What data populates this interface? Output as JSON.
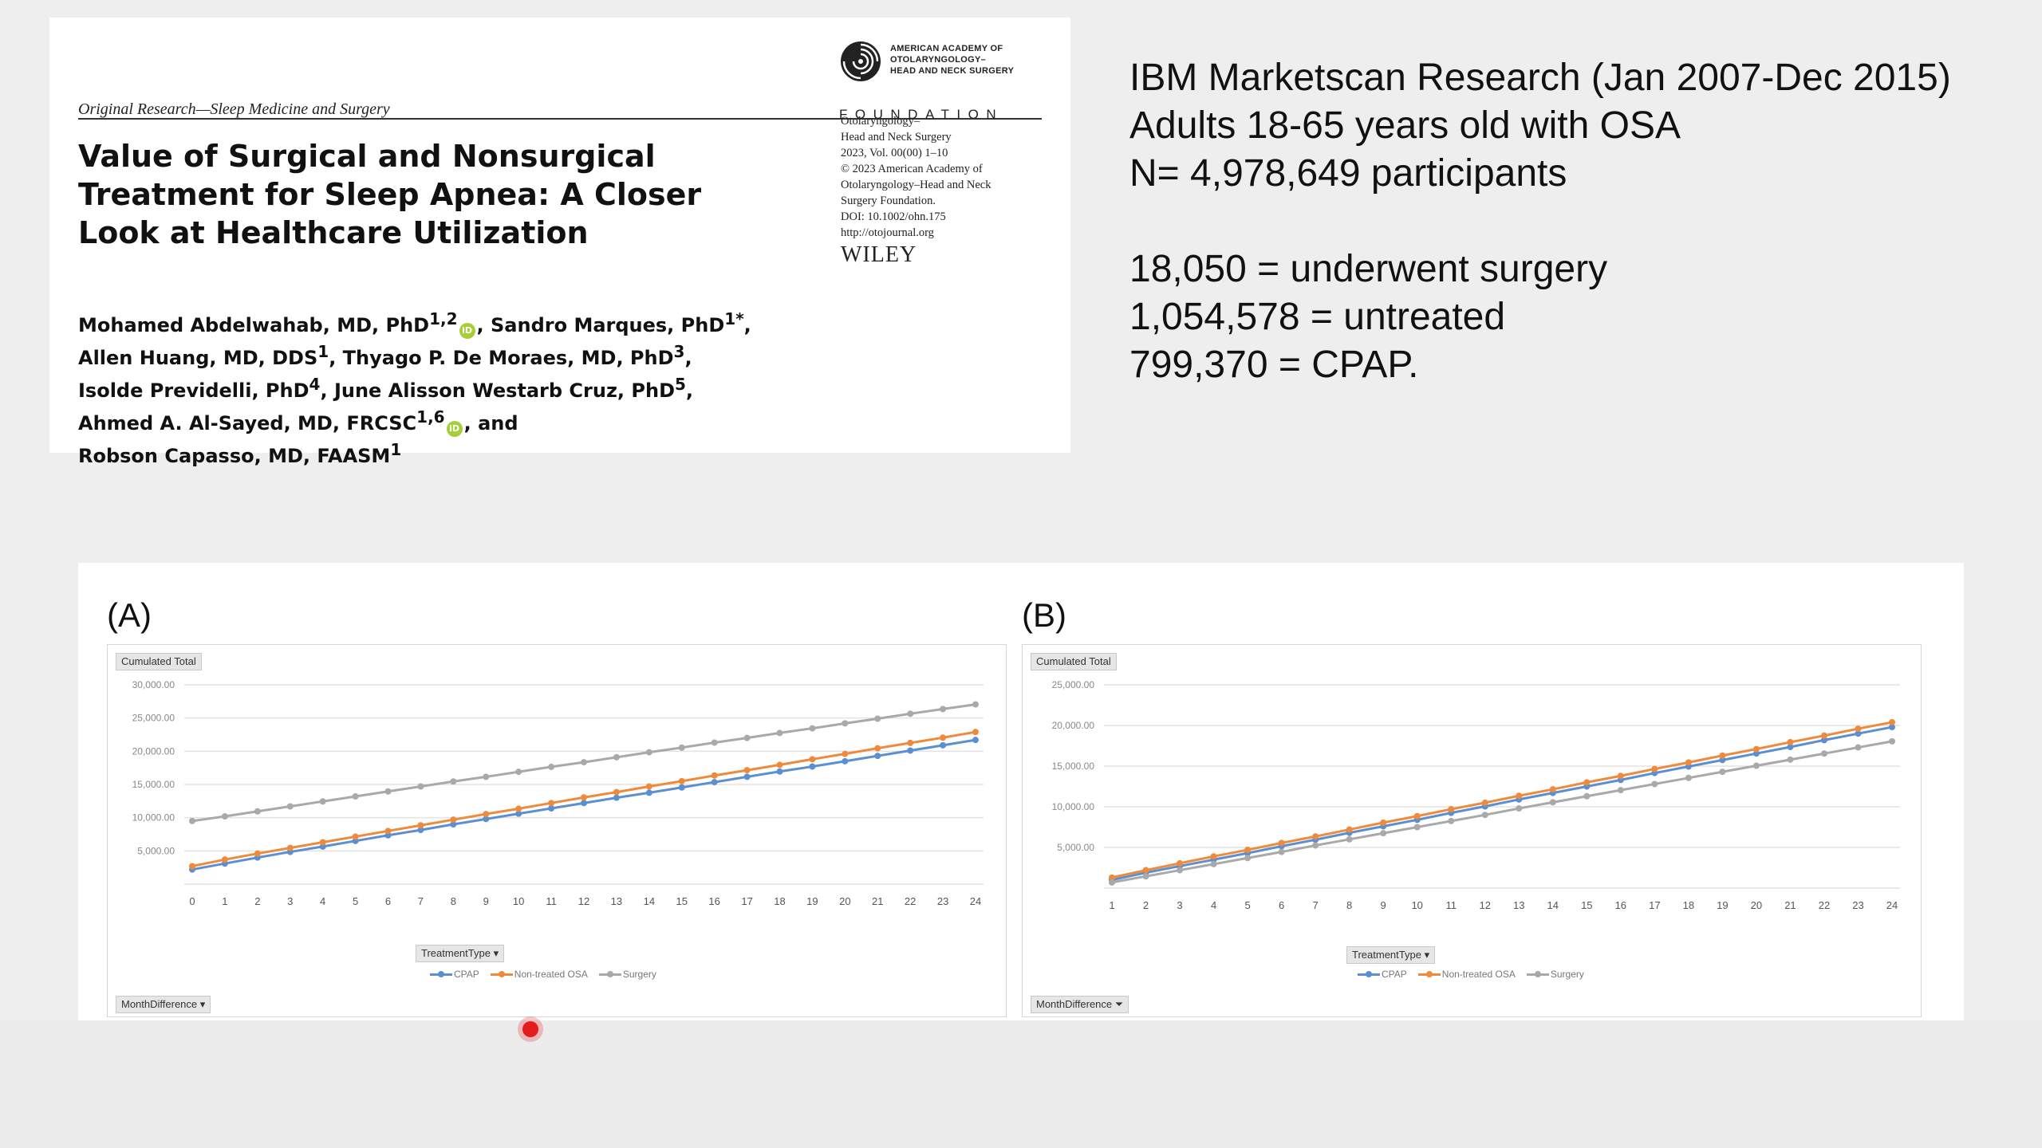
{
  "paper": {
    "section_label": "Original Research—Sleep Medicine and Surgery",
    "logo": {
      "org_lines": [
        "AMERICAN ACADEMY OF",
        "OTOLARYNGOLOGY–",
        "HEAD AND NECK SURGERY"
      ],
      "foundation": "FOUNDATION",
      "icon": "swirl-logo-icon"
    },
    "meta_lines": [
      "Otolaryngology–",
      "Head and Neck Surgery",
      "2023, Vol. 00(00) 1–10",
      "© 2023 American Academy of",
      "Otolaryngology–Head and Neck",
      "Surgery Foundation.",
      "DOI: 10.1002/ohn.175",
      "http://otojournal.org"
    ],
    "publisher": "WILEY",
    "title_lines": [
      "Value of Surgical and Nonsurgical",
      "Treatment for Sleep Apnea: A Closer",
      "Look at Healthcare Utilization"
    ],
    "authors": [
      {
        "name": "Mohamed Abdelwahab, MD, PhD",
        "sup": "1,2",
        "orcid": true,
        "after": ", "
      },
      {
        "name": "Sandro Marques, PhD",
        "sup": "1",
        "star": "*",
        "after": ","
      },
      {
        "name": "Allen Huang, MD, DDS",
        "sup": "1",
        "after": ", "
      },
      {
        "name": "Thyago P. De Moraes, MD, PhD",
        "sup": "3",
        "after": ","
      },
      {
        "name": "Isolde Previdelli, PhD",
        "sup": "4",
        "after": ", "
      },
      {
        "name": "June Alisson Westarb Cruz, PhD",
        "sup": "5",
        "after": ","
      },
      {
        "name": "Ahmed A. Al-Sayed, MD, FRCSC",
        "sup": "1,6",
        "orcid": true,
        "after": ", and"
      },
      {
        "name": "Robson Capasso, MD, FAASM",
        "sup": "1",
        "after": ""
      }
    ],
    "orcid_mark": "iD"
  },
  "info": {
    "lines_top": [
      "IBM Marketscan Research (Jan 2007-Dec 2015)",
      "Adults 18-65 years old with OSA",
      "N= 4,978,649 participants"
    ],
    "lines_bottom": [
      "18,050 = underwent surgery",
      "1,054,578 = untreated",
      "799,370 = CPAP."
    ]
  },
  "colors": {
    "cpap": "#5b8fd1",
    "non_treated": "#ef8a3c",
    "surgery": "#a9a9a9",
    "grid": "#e3e3e3"
  },
  "chart_data": [
    {
      "type": "line",
      "panel_label": "(A)",
      "field_button": "Cumulated Total",
      "legend_button": "TreatmentType",
      "axis_button": "MonthDifference",
      "x": [
        0,
        1,
        2,
        3,
        4,
        5,
        6,
        7,
        8,
        9,
        10,
        11,
        12,
        13,
        14,
        15,
        16,
        17,
        18,
        19,
        20,
        21,
        22,
        23,
        24
      ],
      "ylim": [
        0,
        30000
      ],
      "yticks": [
        "",
        "5,000.00",
        "10,000.00",
        "15,000.00",
        "20,000.00",
        "25,000.00",
        "30,000.00"
      ],
      "series": [
        {
          "name": "CPAP",
          "color_key": "cpap",
          "values": [
            2200,
            3100,
            4000,
            4850,
            5650,
            6500,
            7350,
            8150,
            9000,
            9800,
            10600,
            11400,
            12200,
            13000,
            13750,
            14550,
            15350,
            16150,
            16950,
            17700,
            18500,
            19300,
            20100,
            20900,
            21700
          ]
        },
        {
          "name": "Non-treated OSA",
          "color_key": "non_treated",
          "values": [
            2700,
            3700,
            4600,
            5450,
            6300,
            7150,
            8000,
            8850,
            9700,
            10550,
            11350,
            12200,
            13050,
            13850,
            14700,
            15500,
            16350,
            17150,
            17950,
            18800,
            19600,
            20450,
            21250,
            22050,
            22900
          ]
        },
        {
          "name": "Surgery",
          "color_key": "surgery",
          "values": [
            9500,
            10200,
            10950,
            11700,
            12450,
            13200,
            13950,
            14700,
            15450,
            16150,
            16900,
            17650,
            18350,
            19100,
            19850,
            20550,
            21300,
            22000,
            22750,
            23450,
            24200,
            24900,
            25650,
            26350,
            27050
          ]
        }
      ]
    },
    {
      "type": "line",
      "panel_label": "(B)",
      "field_button": "Cumulated Total",
      "legend_button": "TreatmentType",
      "axis_button": "MonthDifference",
      "x": [
        1,
        2,
        3,
        4,
        5,
        6,
        7,
        8,
        9,
        10,
        11,
        12,
        13,
        14,
        15,
        16,
        17,
        18,
        19,
        20,
        21,
        22,
        23,
        24
      ],
      "ylim": [
        0,
        25000
      ],
      "yticks": [
        "",
        "5,000.00",
        "10,000.00",
        "15,000.00",
        "20,000.00",
        "25,000.00"
      ],
      "series": [
        {
          "name": "CPAP",
          "color_key": "cpap",
          "values": [
            1000,
            1900,
            2700,
            3500,
            4300,
            5150,
            5950,
            6800,
            7600,
            8400,
            9250,
            10050,
            10900,
            11700,
            12500,
            13300,
            14150,
            14950,
            15750,
            16550,
            17350,
            18200,
            19000,
            19800
          ]
        },
        {
          "name": "Non-treated OSA",
          "color_key": "non_treated",
          "values": [
            1300,
            2200,
            3050,
            3900,
            4700,
            5550,
            6350,
            7200,
            8050,
            8850,
            9700,
            10500,
            11350,
            12150,
            13000,
            13800,
            14650,
            15450,
            16300,
            17100,
            17950,
            18750,
            19600,
            20400
          ]
        },
        {
          "name": "Surgery",
          "color_key": "surgery",
          "values": [
            700,
            1450,
            2200,
            2950,
            3700,
            4450,
            5250,
            6000,
            6750,
            7500,
            8250,
            9000,
            9800,
            10550,
            11300,
            12050,
            12800,
            13550,
            14300,
            15050,
            15800,
            16550,
            17300,
            18050
          ]
        }
      ]
    }
  ]
}
